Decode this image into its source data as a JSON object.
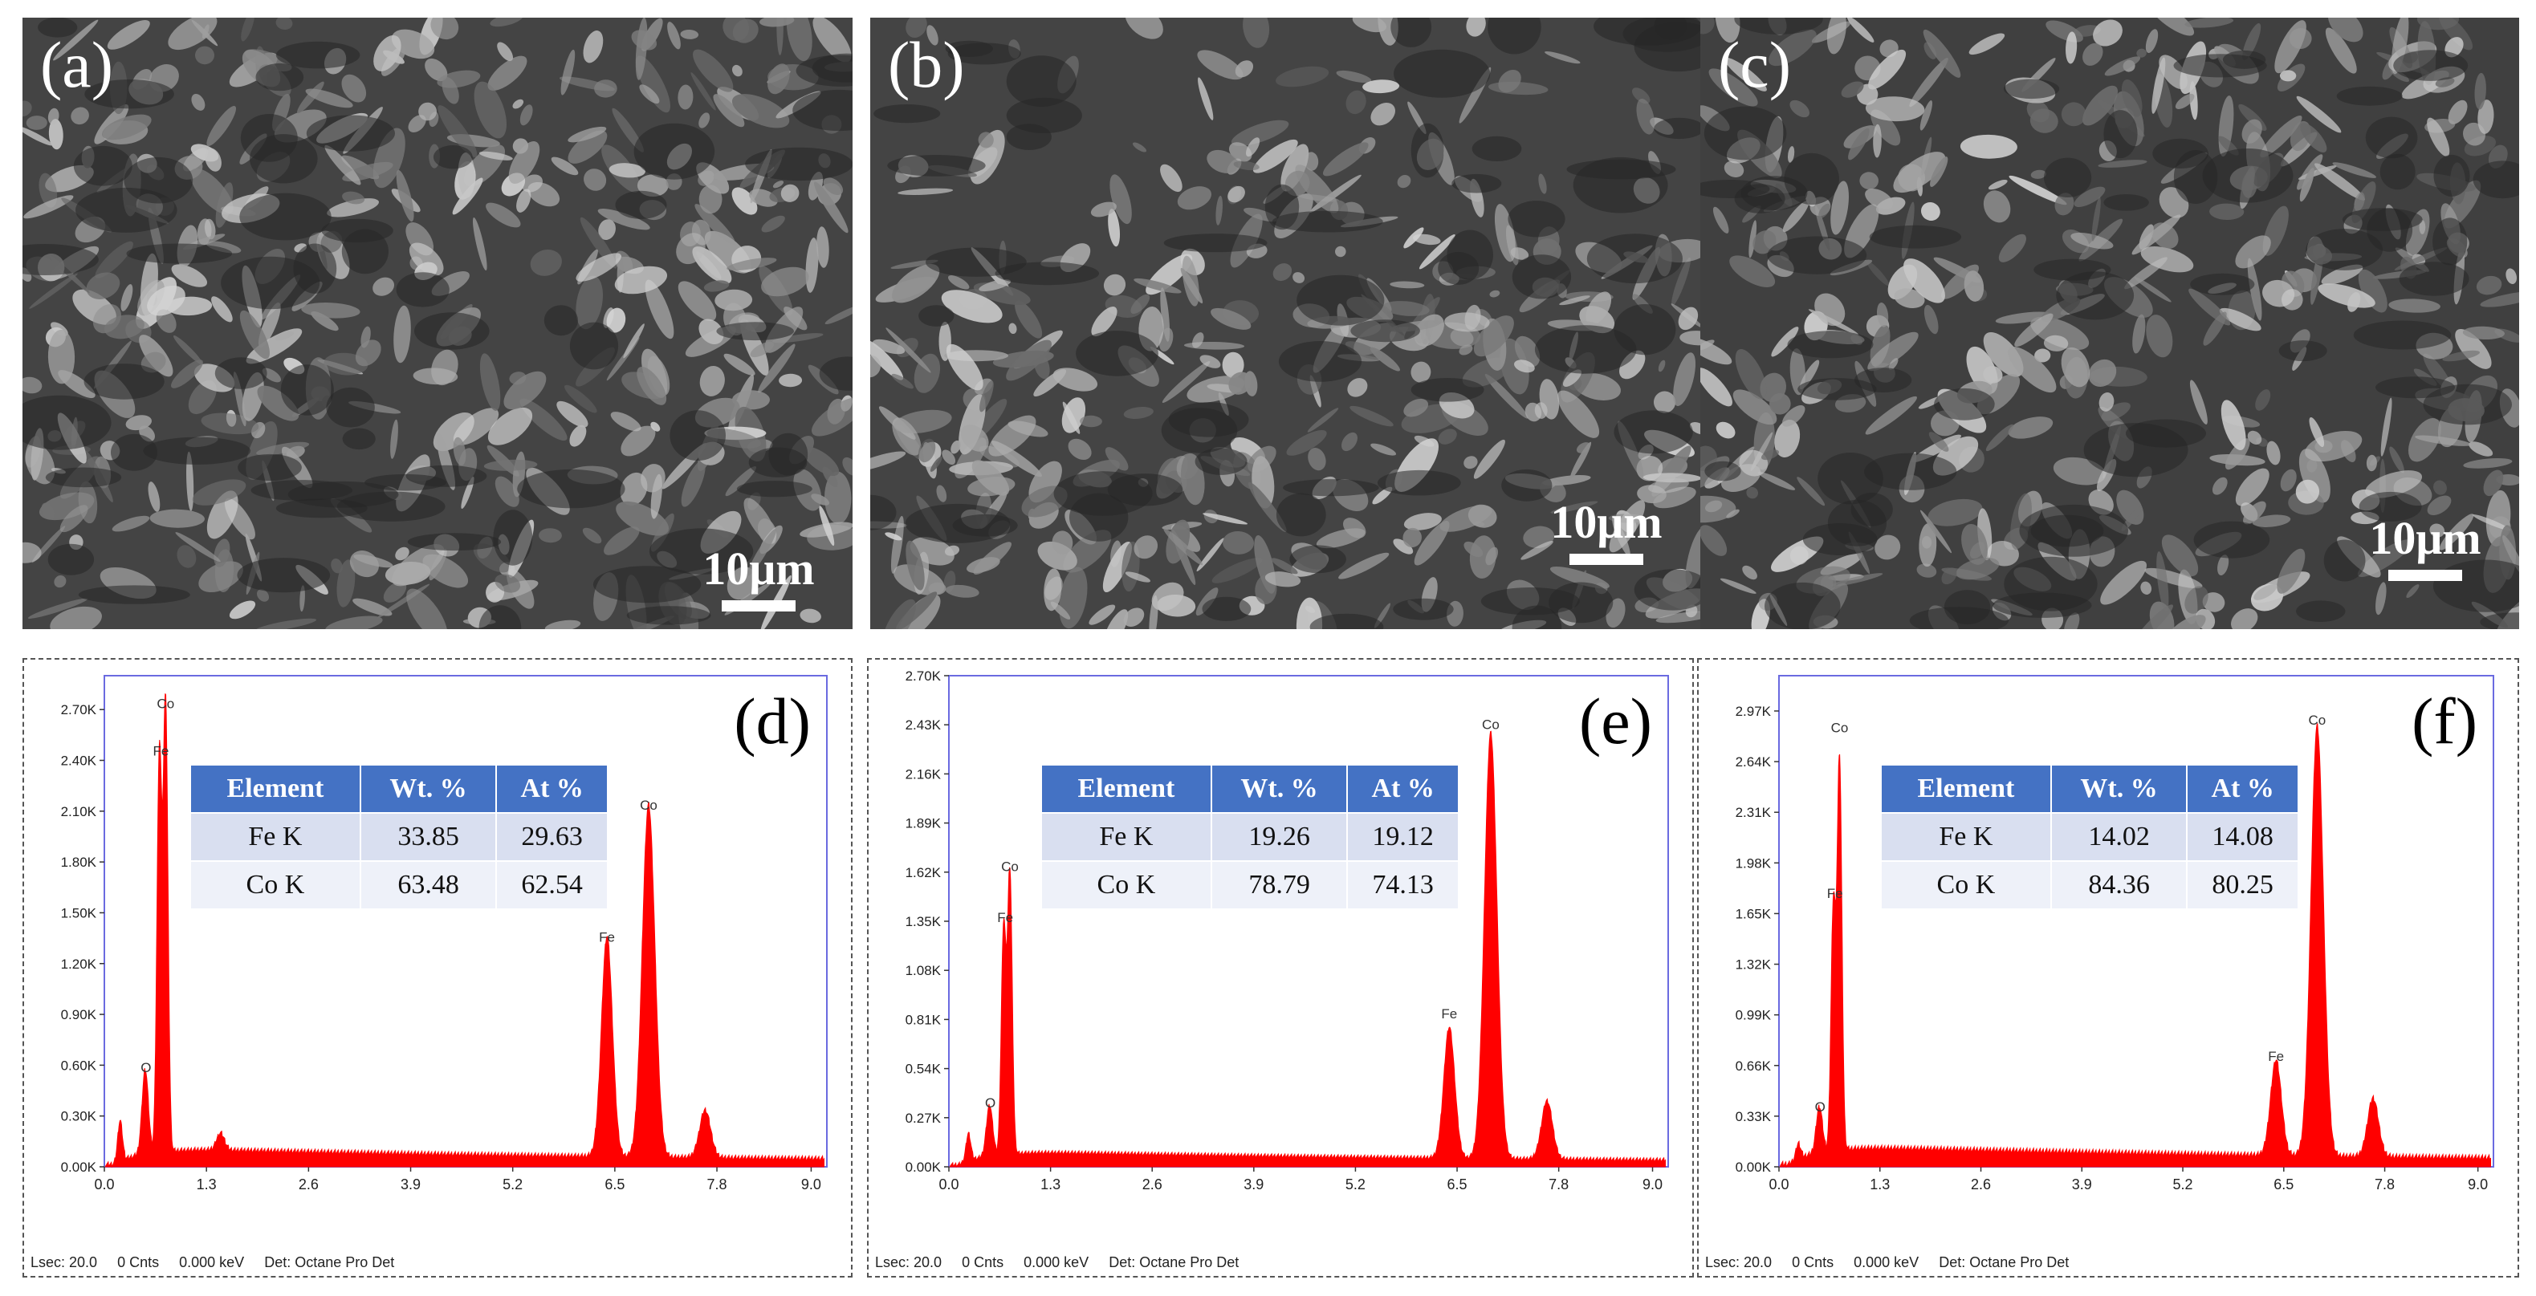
{
  "sem_panels": [
    {
      "label": "(a)",
      "scale": "10μm"
    },
    {
      "label": "(b)",
      "scale": "10μm"
    },
    {
      "label": "(c)",
      "scale": "10μm"
    }
  ],
  "table_headers": [
    "Element",
    "Wt. %",
    "At %"
  ],
  "colors": {
    "spectrum": "#ff0000",
    "plot_border": "#6a6ae0",
    "table_header": "#4472c4"
  },
  "chart_data": [
    {
      "type": "area",
      "panel_label": "(d)",
      "x_ticks": [
        "0.0",
        "1.3",
        "2.6",
        "3.9",
        "5.2",
        "6.5",
        "7.8",
        "9.0"
      ],
      "xlim": [
        0,
        9.2
      ],
      "y_ticks": [
        "0.00K",
        "0.30K",
        "0.60K",
        "0.90K",
        "1.20K",
        "1.50K",
        "1.80K",
        "2.10K",
        "2.40K",
        "2.70K"
      ],
      "ylim": [
        0,
        2.9
      ],
      "peak_labels": [
        {
          "text": "Co",
          "x": 0.78,
          "y": 2.68
        },
        {
          "text": "Fe",
          "x": 0.72,
          "y": 2.4
        },
        {
          "text": "O",
          "x": 0.53,
          "y": 0.53
        },
        {
          "text": "Fe",
          "x": 6.4,
          "y": 1.3
        },
        {
          "text": "Co",
          "x": 6.93,
          "y": 2.08
        }
      ],
      "peaks": [
        {
          "x": 0.2,
          "h": 0.24,
          "w": 0.03
        },
        {
          "x": 0.52,
          "h": 0.5,
          "w": 0.04
        },
        {
          "x": 0.7,
          "h": 2.35,
          "w": 0.03
        },
        {
          "x": 0.78,
          "h": 2.65,
          "w": 0.03
        },
        {
          "x": 1.48,
          "h": 0.1,
          "w": 0.05
        },
        {
          "x": 6.4,
          "h": 1.3,
          "w": 0.07
        },
        {
          "x": 6.93,
          "h": 2.08,
          "w": 0.08
        },
        {
          "x": 7.65,
          "h": 0.28,
          "w": 0.07
        }
      ],
      "background": 0.09,
      "table": [
        [
          "Fe K",
          "33.85",
          "29.63"
        ],
        [
          "Co K",
          "63.48",
          "62.54"
        ]
      ],
      "footer": [
        "Lsec: 20.0",
        "0 Cnts",
        "0.000 keV",
        "Det: Octane Pro Det"
      ]
    },
    {
      "type": "area",
      "panel_label": "(e)",
      "x_ticks": [
        "0.0",
        "1.3",
        "2.6",
        "3.9",
        "5.2",
        "6.5",
        "7.8",
        "9.0"
      ],
      "xlim": [
        0,
        9.2
      ],
      "y_ticks": [
        "0.00K",
        "0.27K",
        "0.54K",
        "0.81K",
        "1.08K",
        "1.35K",
        "1.62K",
        "1.89K",
        "2.16K",
        "2.43K",
        "2.70K"
      ],
      "ylim": [
        0,
        2.7
      ],
      "peak_labels": [
        {
          "text": "Co",
          "x": 0.78,
          "y": 1.6
        },
        {
          "text": "Fe",
          "x": 0.72,
          "y": 1.32
        },
        {
          "text": "O",
          "x": 0.53,
          "y": 0.3
        },
        {
          "text": "Fe",
          "x": 6.4,
          "y": 0.79
        },
        {
          "text": "Co",
          "x": 6.93,
          "y": 2.38
        }
      ],
      "peaks": [
        {
          "x": 0.25,
          "h": 0.15,
          "w": 0.03
        },
        {
          "x": 0.52,
          "h": 0.28,
          "w": 0.04
        },
        {
          "x": 0.7,
          "h": 1.25,
          "w": 0.03
        },
        {
          "x": 0.78,
          "h": 1.55,
          "w": 0.03
        },
        {
          "x": 6.4,
          "h": 0.72,
          "w": 0.07
        },
        {
          "x": 6.93,
          "h": 2.34,
          "w": 0.08
        },
        {
          "x": 7.65,
          "h": 0.32,
          "w": 0.07
        }
      ],
      "background": 0.07,
      "table": [
        [
          "Fe K",
          "19.26",
          "19.12"
        ],
        [
          "Co K",
          "78.79",
          "74.13"
        ]
      ],
      "footer": [
        "Lsec: 20.0",
        "0 Cnts",
        "0.000 keV",
        "Det: Octane Pro Det"
      ]
    },
    {
      "type": "area",
      "panel_label": "(f)",
      "x_ticks": [
        "0.0",
        "1.3",
        "2.6",
        "3.9",
        "5.2",
        "6.5",
        "7.8",
        "9.0"
      ],
      "xlim": [
        0,
        9.2
      ],
      "y_ticks": [
        "0.00K",
        "0.33K",
        "0.66K",
        "0.99K",
        "1.32K",
        "1.65K",
        "1.98K",
        "2.31K",
        "2.64K",
        "2.97K"
      ],
      "ylim": [
        0,
        3.2
      ],
      "peak_labels": [
        {
          "text": "Co",
          "x": 0.78,
          "y": 2.8
        },
        {
          "text": "Fe",
          "x": 0.72,
          "y": 1.72
        },
        {
          "text": "O",
          "x": 0.53,
          "y": 0.33
        },
        {
          "text": "Fe",
          "x": 6.4,
          "y": 0.66
        },
        {
          "text": "Co",
          "x": 6.93,
          "y": 2.85
        }
      ],
      "peaks": [
        {
          "x": 0.25,
          "h": 0.1,
          "w": 0.03
        },
        {
          "x": 0.52,
          "h": 0.3,
          "w": 0.04
        },
        {
          "x": 0.7,
          "h": 1.6,
          "w": 0.03
        },
        {
          "x": 0.78,
          "h": 2.55,
          "w": 0.03
        },
        {
          "x": 6.4,
          "h": 0.62,
          "w": 0.07
        },
        {
          "x": 6.93,
          "h": 2.8,
          "w": 0.08
        },
        {
          "x": 7.65,
          "h": 0.38,
          "w": 0.07
        }
      ],
      "background": 0.11,
      "table": [
        [
          "Fe K",
          "14.02",
          "14.08"
        ],
        [
          "Co K",
          "84.36",
          "80.25"
        ]
      ],
      "footer": [
        "Lsec: 20.0",
        "0 Cnts",
        "0.000 keV",
        "Det: Octane Pro Det"
      ]
    }
  ]
}
